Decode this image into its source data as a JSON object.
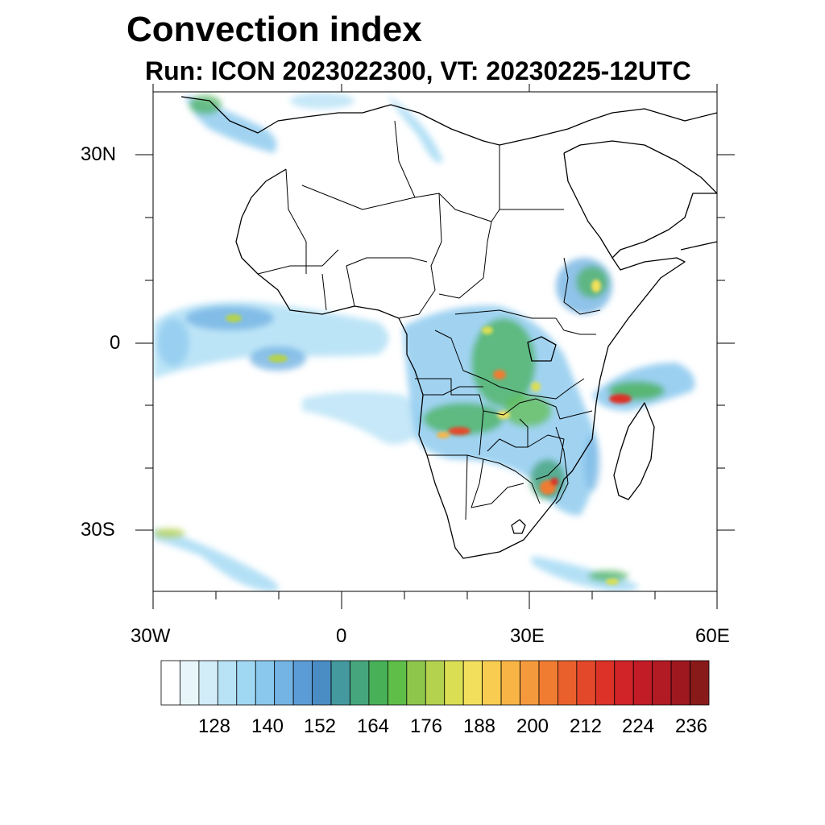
{
  "title": "Convection index",
  "subtitle": "Run: ICON 2023022300,  VT: 20230225-12UTC",
  "map": {
    "region": "Africa",
    "lon_range": [
      -30,
      60
    ],
    "lat_range": [
      -40,
      40
    ],
    "x_ticks": [
      "30W",
      "0",
      "30E",
      "60E"
    ],
    "y_ticks": [
      "30N",
      "0",
      "30S"
    ]
  },
  "colorbar": {
    "labels": [
      "128",
      "140",
      "152",
      "164",
      "176",
      "188",
      "200",
      "212",
      "224",
      "236"
    ],
    "colors": [
      "#ffffff",
      "#e8f6fc",
      "#d2ecf8",
      "#b8e2f6",
      "#a0d8f4",
      "#8ac8ee",
      "#74b4e4",
      "#5c9cd6",
      "#4a8cc4",
      "#44999e",
      "#46a57c",
      "#48b158",
      "#5ebe48",
      "#8ec64c",
      "#b4d24e",
      "#dade52",
      "#f2e05c",
      "#f8cc50",
      "#f8b444",
      "#f59a3c",
      "#f07c32",
      "#ea602c",
      "#e4482a",
      "#dc3228",
      "#d02428",
      "#c21c26",
      "#b21a24",
      "#9e1820",
      "#881a1a"
    ]
  }
}
